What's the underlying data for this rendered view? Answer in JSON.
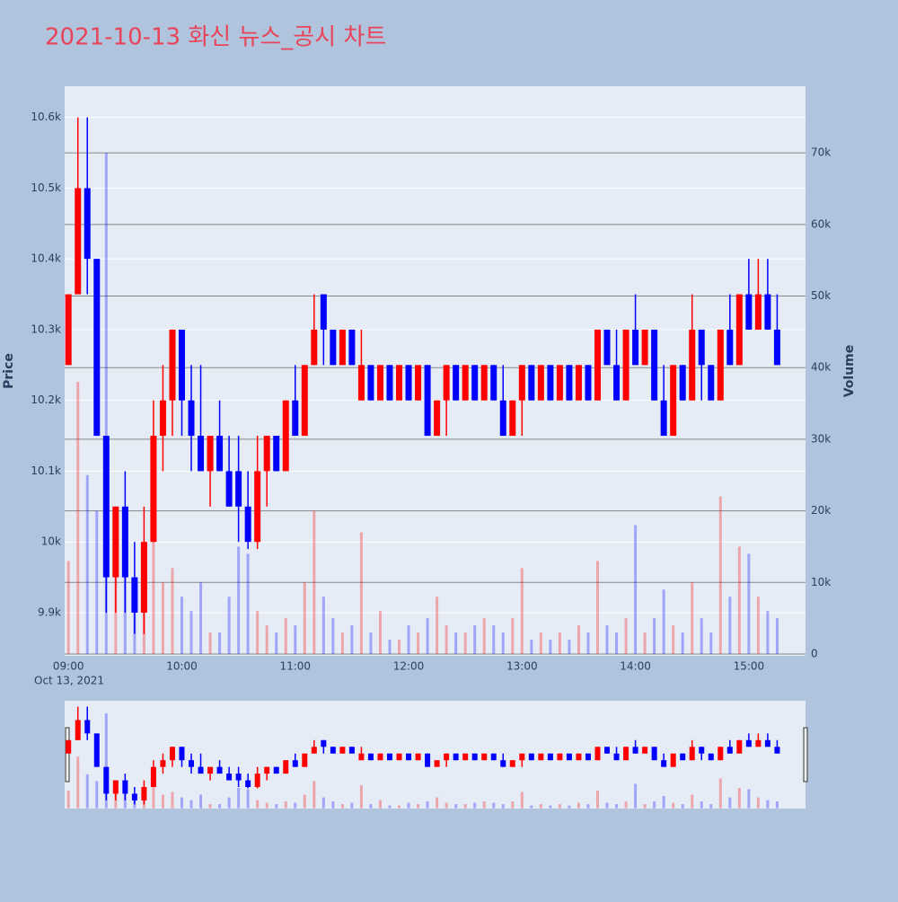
{
  "chart_data": {
    "type": "candlestick",
    "title": "2021-10-13 화신 뉴스_공시 차트",
    "y_title": "Price",
    "y2_title": "Volume",
    "x_date_label": "Oct 13, 2021",
    "up_color": "#ff0000",
    "down_color": "#0000ff",
    "grid": true,
    "xlim": [
      "2021-10-13 08:58",
      "2021-10-13 15:30"
    ],
    "xticks": [
      {
        "value": "2021-10-13 09:00",
        "label": "09:00"
      },
      {
        "value": "2021-10-13 10:00",
        "label": "10:00"
      },
      {
        "value": "2021-10-13 11:00",
        "label": "11:00"
      },
      {
        "value": "2021-10-13 12:00",
        "label": "12:00"
      },
      {
        "value": "2021-10-13 13:00",
        "label": "13:00"
      },
      {
        "value": "2021-10-13 14:00",
        "label": "14:00"
      },
      {
        "value": "2021-10-13 15:00",
        "label": "15:00"
      }
    ],
    "ylim": [
      9839,
      10644
    ],
    "yticks": [
      {
        "value": 9900,
        "label": "9.9k"
      },
      {
        "value": 10000,
        "label": "10k"
      },
      {
        "value": 10100,
        "label": "10.1k"
      },
      {
        "value": 10200,
        "label": "10.2k"
      },
      {
        "value": 10300,
        "label": "10.3k"
      },
      {
        "value": 10400,
        "label": "10.4k"
      },
      {
        "value": 10500,
        "label": "10.5k"
      },
      {
        "value": 10600,
        "label": "10.6k"
      }
    ],
    "y2lim": [
      -250,
      79300
    ],
    "y2ticks": [
      0,
      {
        "value": 10000,
        "label": "10k"
      },
      {
        "value": 20000,
        "label": "20k"
      },
      {
        "value": 30000,
        "label": "30k"
      },
      {
        "value": 40000,
        "label": "40k"
      },
      {
        "value": 50000,
        "label": "50k"
      },
      {
        "value": 60000,
        "label": "60k"
      },
      {
        "value": 70000,
        "label": "70k"
      }
    ],
    "x": [
      "2021-10-13 09:00",
      "2021-10-13 09:05",
      "2021-10-13 09:10",
      "2021-10-13 09:15",
      "2021-10-13 09:20",
      "2021-10-13 09:25",
      "2021-10-13 09:30",
      "2021-10-13 09:35",
      "2021-10-13 09:40",
      "2021-10-13 09:45",
      "2021-10-13 09:50",
      "2021-10-13 09:55",
      "2021-10-13 10:00",
      "2021-10-13 10:05",
      "2021-10-13 10:10",
      "2021-10-13 10:15",
      "2021-10-13 10:20",
      "2021-10-13 10:25",
      "2021-10-13 10:30",
      "2021-10-13 10:35",
      "2021-10-13 10:40",
      "2021-10-13 10:45",
      "2021-10-13 10:50",
      "2021-10-13 10:55",
      "2021-10-13 11:00",
      "2021-10-13 11:05",
      "2021-10-13 11:10",
      "2021-10-13 11:15",
      "2021-10-13 11:20",
      "2021-10-13 11:25",
      "2021-10-13 11:30",
      "2021-10-13 11:35",
      "2021-10-13 11:40",
      "2021-10-13 11:45",
      "2021-10-13 11:50",
      "2021-10-13 11:55",
      "2021-10-13 12:00",
      "2021-10-13 12:05",
      "2021-10-13 12:10",
      "2021-10-13 12:15",
      "2021-10-13 12:20",
      "2021-10-13 12:25",
      "2021-10-13 12:30",
      "2021-10-13 12:35",
      "2021-10-13 12:40",
      "2021-10-13 12:45",
      "2021-10-13 12:50",
      "2021-10-13 12:55",
      "2021-10-13 13:00",
      "2021-10-13 13:05",
      "2021-10-13 13:10",
      "2021-10-13 13:15",
      "2021-10-13 13:20",
      "2021-10-13 13:25",
      "2021-10-13 13:30",
      "2021-10-13 13:35",
      "2021-10-13 13:40",
      "2021-10-13 13:45",
      "2021-10-13 13:50",
      "2021-10-13 13:55",
      "2021-10-13 14:00",
      "2021-10-13 14:05",
      "2021-10-13 14:10",
      "2021-10-13 14:15",
      "2021-10-13 14:20",
      "2021-10-13 14:25",
      "2021-10-13 14:30",
      "2021-10-13 14:35",
      "2021-10-13 14:40",
      "2021-10-13 14:45",
      "2021-10-13 14:50",
      "2021-10-13 14:55",
      "2021-10-13 15:00",
      "2021-10-13 15:05",
      "2021-10-13 15:10",
      "2021-10-13 15:15"
    ],
    "open": [
      10250,
      10350,
      10500,
      10400,
      10150,
      9950,
      10050,
      9950,
      9900,
      10000,
      10150,
      10200,
      10300,
      10200,
      10150,
      10100,
      10150,
      10100,
      10100,
      10050,
      10000,
      10100,
      10150,
      10100,
      10200,
      10150,
      10250,
      10350,
      10300,
      10250,
      10300,
      10200,
      10250,
      10200,
      10250,
      10200,
      10250,
      10200,
      10250,
      10150,
      10200,
      10250,
      10200,
      10250,
      10200,
      10250,
      10200,
      10150,
      10200,
      10250,
      10200,
      10250,
      10200,
      10250,
      10200,
      10250,
      10200,
      10300,
      10250,
      10200,
      10300,
      10250,
      10300,
      10200,
      10150,
      10250,
      10200,
      10300,
      10250,
      10200,
      10300,
      10250,
      10350,
      10300,
      10350,
      10300
    ],
    "high": [
      10350,
      10600,
      10600,
      10400,
      10150,
      10050,
      10100,
      10000,
      10050,
      10200,
      10250,
      10300,
      10300,
      10250,
      10250,
      10150,
      10200,
      10150,
      10150,
      10100,
      10150,
      10150,
      10150,
      10200,
      10250,
      10250,
      10350,
      10350,
      10300,
      10300,
      10300,
      10300,
      10250,
      10250,
      10250,
      10250,
      10250,
      10250,
      10250,
      10200,
      10250,
      10250,
      10250,
      10250,
      10250,
      10250,
      10250,
      10200,
      10250,
      10250,
      10250,
      10250,
      10250,
      10250,
      10250,
      10250,
      10300,
      10300,
      10300,
      10300,
      10350,
      10300,
      10300,
      10250,
      10250,
      10250,
      10350,
      10300,
      10250,
      10300,
      10350,
      10350,
      10400,
      10400,
      10400,
      10350
    ],
    "low": [
      10250,
      10350,
      10350,
      10150,
      9900,
      9900,
      9900,
      9870,
      9870,
      10000,
      10100,
      10150,
      10150,
      10100,
      10100,
      10050,
      10100,
      10050,
      10000,
      9990,
      9990,
      10050,
      10100,
      10100,
      10150,
      10150,
      10250,
      10250,
      10250,
      10250,
      10250,
      10200,
      10200,
      10200,
      10200,
      10200,
      10200,
      10200,
      10150,
      10150,
      10150,
      10200,
      10200,
      10200,
      10200,
      10200,
      10150,
      10150,
      10150,
      10200,
      10200,
      10200,
      10200,
      10200,
      10200,
      10200,
      10200,
      10250,
      10200,
      10200,
      10250,
      10250,
      10200,
      10150,
      10150,
      10200,
      10200,
      10200,
      10200,
      10200,
      10250,
      10250,
      10300,
      10300,
      10300,
      10250
    ],
    "close": [
      10350,
      10500,
      10400,
      10150,
      9950,
      10050,
      9950,
      9900,
      10000,
      10150,
      10200,
      10300,
      10200,
      10150,
      10100,
      10150,
      10100,
      10050,
      10050,
      10000,
      10100,
      10150,
      10100,
      10200,
      10150,
      10250,
      10300,
      10300,
      10250,
      10300,
      10250,
      10250,
      10200,
      10250,
      10200,
      10250,
      10200,
      10250,
      10150,
      10200,
      10250,
      10200,
      10250,
      10200,
      10250,
      10200,
      10150,
      10200,
      10250,
      10200,
      10250,
      10200,
      10250,
      10200,
      10250,
      10200,
      10300,
      10250,
      10200,
      10300,
      10250,
      10300,
      10200,
      10150,
      10250,
      10200,
      10300,
      10250,
      10200,
      10300,
      10250,
      10350,
      10300,
      10350,
      10300,
      10250
    ],
    "volume": [
      13000,
      38000,
      25000,
      20000,
      70000,
      12000,
      20000,
      8000,
      15000,
      18000,
      10000,
      12000,
      8000,
      6000,
      10000,
      3000,
      3000,
      8000,
      15000,
      14000,
      6000,
      4000,
      3000,
      5000,
      4000,
      10000,
      20000,
      8000,
      5000,
      3000,
      4000,
      17000,
      3000,
      6000,
      2000,
      2000,
      4000,
      3000,
      5000,
      8000,
      4000,
      3000,
      3000,
      4000,
      5000,
      4000,
      3000,
      5000,
      12000,
      2000,
      3000,
      2000,
      3000,
      2000,
      4000,
      3000,
      13000,
      4000,
      3000,
      5000,
      18000,
      3000,
      5000,
      9000,
      4000,
      3000,
      10000,
      5000,
      3000,
      22000,
      8000,
      15000,
      14000,
      8000,
      6000,
      5000
    ]
  }
}
